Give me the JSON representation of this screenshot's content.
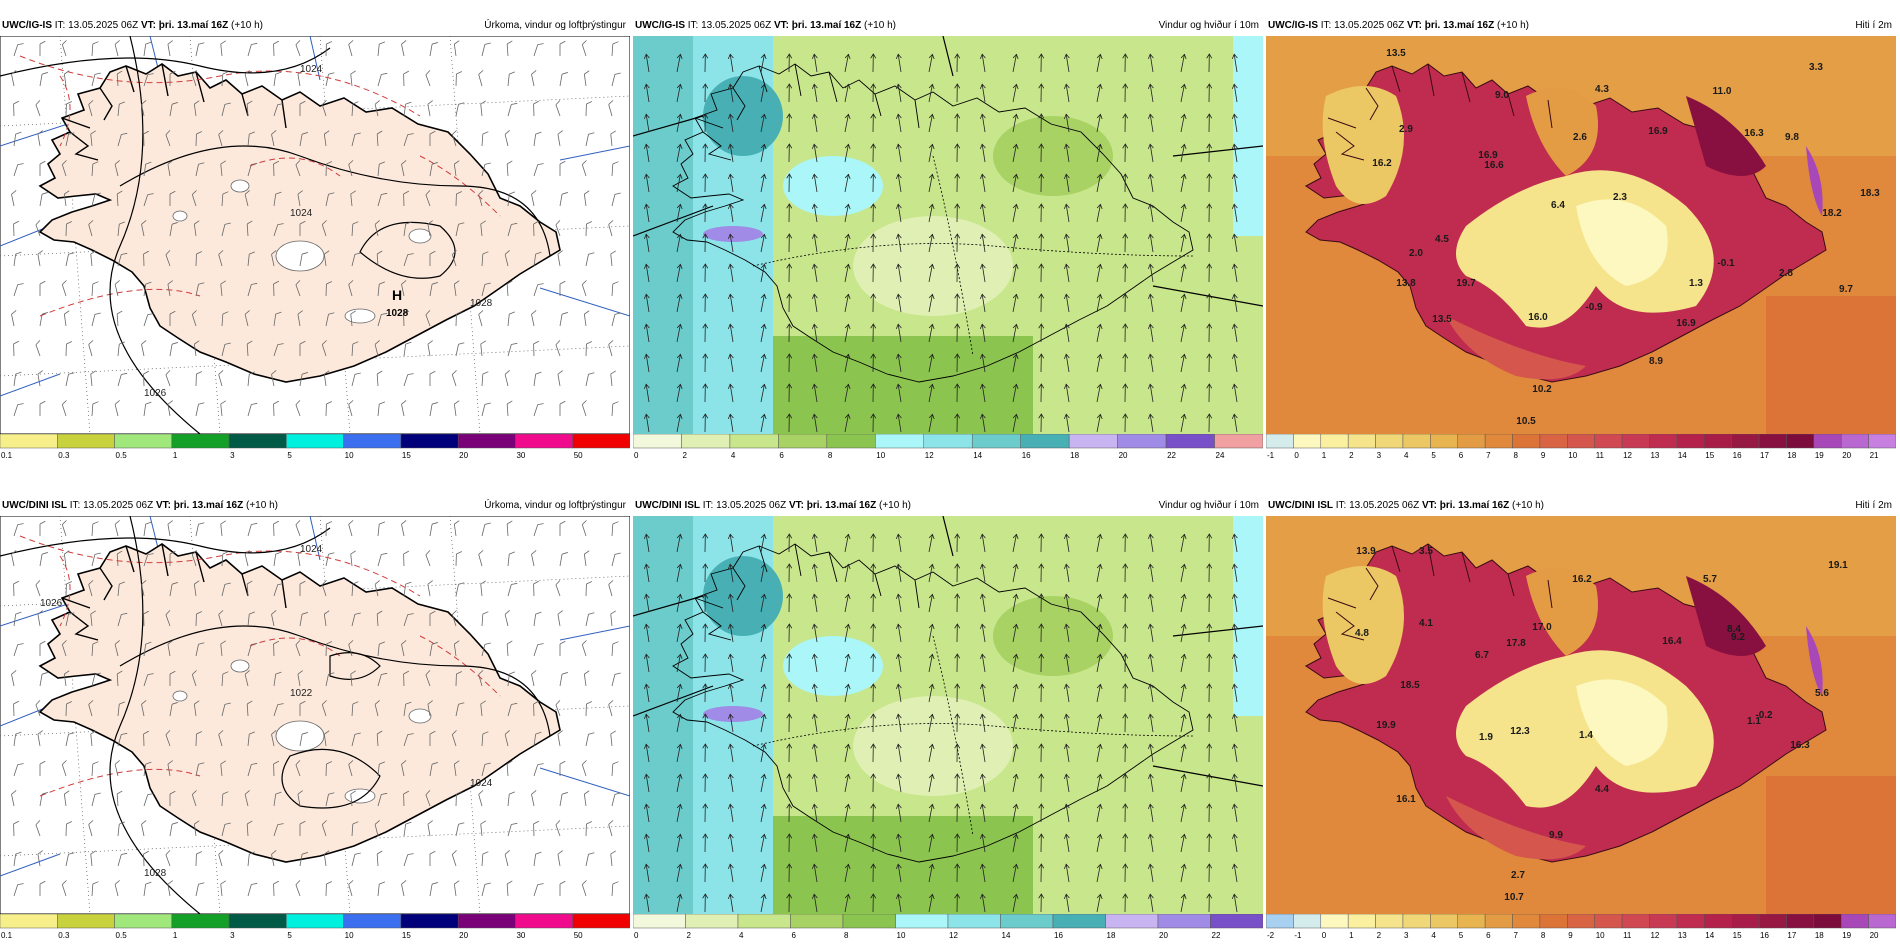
{
  "panels": [
    {
      "model": "UWC/IG-IS",
      "it_label": "IT:",
      "it_value": "13.05.2025 06Z",
      "vt_label": "VT:",
      "vt_value": "þri. 13.maí 16Z",
      "lead": "(+10 h)",
      "title": "Úrkoma, vindur og loftþrýstingur",
      "type": "precip",
      "highs": [
        {
          "label": "H",
          "value": "1028"
        }
      ],
      "isobars": [
        "1024",
        "1024",
        "1028",
        "1026"
      ],
      "colorbar": {
        "labels": [
          "0.1",
          "0.3",
          "0.5",
          "1",
          "3",
          "5",
          "10",
          "15",
          "20",
          "30",
          "50"
        ],
        "colors": [
          "#f7f08a",
          "#c8d23c",
          "#a0e87c",
          "#14a028",
          "#005a46",
          "#00f0e0",
          "#3c6ef0",
          "#00007a",
          "#7a0078",
          "#f00a8c",
          "#f00000"
        ]
      }
    },
    {
      "model": "UWC/IG-IS",
      "it_label": "IT:",
      "it_value": "13.05.2025 06Z",
      "vt_label": "VT:",
      "vt_value": "þri. 13.maí 16Z",
      "lead": "(+10 h)",
      "title": "Vindur og hviður í 10m",
      "type": "wind",
      "colorbar": {
        "labels": [
          "0",
          "2",
          "4",
          "6",
          "8",
          "10",
          "12",
          "14",
          "16",
          "18",
          "20",
          "22",
          "24"
        ],
        "colors": [
          "#f2f8dc",
          "#e0f0b4",
          "#c8e68c",
          "#a8d264",
          "#8cc450",
          "#aaf6f8",
          "#8ce4e8",
          "#6ccccc",
          "#48b0b4",
          "#c8b4f0",
          "#a08ce6",
          "#7850c8",
          "#f0a0a0"
        ]
      }
    },
    {
      "model": "UWC/IG-IS",
      "it_label": "IT:",
      "it_value": "13.05.2025 06Z",
      "vt_label": "VT:",
      "vt_value": "þri. 13.maí 16Z",
      "lead": "(+10 h)",
      "title": "Hiti í 2m",
      "type": "temp",
      "values": [
        "13.5",
        "4.3",
        "9.0",
        "11.0",
        "3.3",
        "2.9",
        "2.6",
        "16.9",
        "16.3",
        "9.8",
        "16.2",
        "16.6",
        "16.9",
        "18.3",
        "2.3",
        "6.4",
        "18.2",
        "4.5",
        "2.0",
        "-0.1",
        "1.3",
        "-0.9",
        "13.5",
        "16.0",
        "16.9",
        "8.9",
        "10.2",
        "10.5",
        "13.8",
        "19.7",
        "2.8",
        "9.7"
      ],
      "colorbar": {
        "labels": [
          "-1",
          "0",
          "1",
          "2",
          "3",
          "4",
          "5",
          "6",
          "7",
          "8",
          "9",
          "10",
          "11",
          "12",
          "13",
          "14",
          "15",
          "16",
          "17",
          "18",
          "19",
          "20",
          "21"
        ],
        "colors": [
          "#d4ecec",
          "#fdf8c0",
          "#faf0a0",
          "#f6e48c",
          "#f0d878",
          "#ecc864",
          "#e8b450",
          "#e49c44",
          "#e0883c",
          "#dc7438",
          "#d86444",
          "#d4564c",
          "#d04852",
          "#c83a54",
          "#c02c50",
          "#b4224c",
          "#a81c48",
          "#981844",
          "#881040",
          "#7c0c3c",
          "#a848b8",
          "#b868d0",
          "#c880e0"
        ]
      }
    },
    {
      "model": "UWC/DINI ISL",
      "it_label": "IT:",
      "it_value": "13.05.2025 06Z",
      "vt_label": "VT:",
      "vt_value": "þri. 13.maí 16Z",
      "lead": "(+10 h)",
      "title": "Úrkoma, vindur og loftþrýstingur",
      "type": "precip",
      "highs": [],
      "isobars": [
        "1024",
        "1022",
        "1024",
        "1028",
        "1026"
      ],
      "colorbar": {
        "labels": [
          "0.1",
          "0.3",
          "0.5",
          "1",
          "3",
          "5",
          "10",
          "15",
          "20",
          "30",
          "50"
        ],
        "colors": [
          "#f7f08a",
          "#c8d23c",
          "#a0e87c",
          "#14a028",
          "#005a46",
          "#00f0e0",
          "#3c6ef0",
          "#00007a",
          "#7a0078",
          "#f00a8c",
          "#f00000"
        ]
      }
    },
    {
      "model": "UWC/DINI ISL",
      "it_label": "IT:",
      "it_value": "13.05.2025 06Z",
      "vt_label": "VT:",
      "vt_value": "þri. 13.maí 16Z",
      "lead": "(+10 h)",
      "title": "Vindur og hviður í 10m",
      "type": "wind",
      "colorbar": {
        "labels": [
          "0",
          "2",
          "4",
          "6",
          "8",
          "10",
          "12",
          "14",
          "16",
          "18",
          "20",
          "22"
        ],
        "colors": [
          "#f2f8dc",
          "#e0f0b4",
          "#c8e68c",
          "#a8d264",
          "#8cc450",
          "#aaf6f8",
          "#8ce4e8",
          "#6ccccc",
          "#48b0b4",
          "#c8b4f0",
          "#a08ce6",
          "#7850c8"
        ]
      }
    },
    {
      "model": "UWC/DINI ISL",
      "it_label": "IT:",
      "it_value": "13.05.2025 06Z",
      "vt_label": "VT:",
      "vt_value": "þri. 13.maí 16Z",
      "lead": "(+10 h)",
      "title": "Hiti í 2m",
      "type": "temp",
      "values": [
        "13.9",
        "3.5",
        "16.2",
        "5.7",
        "19.1",
        "4.8",
        "4.1",
        "17.8",
        "17.0",
        "16.4",
        "9.2",
        "8.4",
        "6.7",
        "18.5",
        "5.6",
        "19.9",
        "1.9",
        "12.3",
        "1.4",
        "-0.2",
        "1.1",
        "16.1",
        "16.3",
        "4.4",
        "9.9",
        "2.7",
        "10.7"
      ],
      "colorbar": {
        "labels": [
          "-2",
          "-1",
          "0",
          "1",
          "2",
          "3",
          "4",
          "5",
          "6",
          "7",
          "8",
          "9",
          "10",
          "11",
          "12",
          "13",
          "14",
          "15",
          "16",
          "17",
          "18",
          "19",
          "20"
        ],
        "colors": [
          "#a8d0f0",
          "#d4ecec",
          "#fdf8c0",
          "#faf0a0",
          "#f6e48c",
          "#f0d878",
          "#ecc864",
          "#e8b450",
          "#e49c44",
          "#e0883c",
          "#dc7438",
          "#d86444",
          "#d4564c",
          "#d04852",
          "#c83a54",
          "#c02c50",
          "#b4224c",
          "#a81c48",
          "#981844",
          "#881040",
          "#7c0c3c",
          "#a848b8",
          "#b868d0"
        ]
      }
    }
  ]
}
